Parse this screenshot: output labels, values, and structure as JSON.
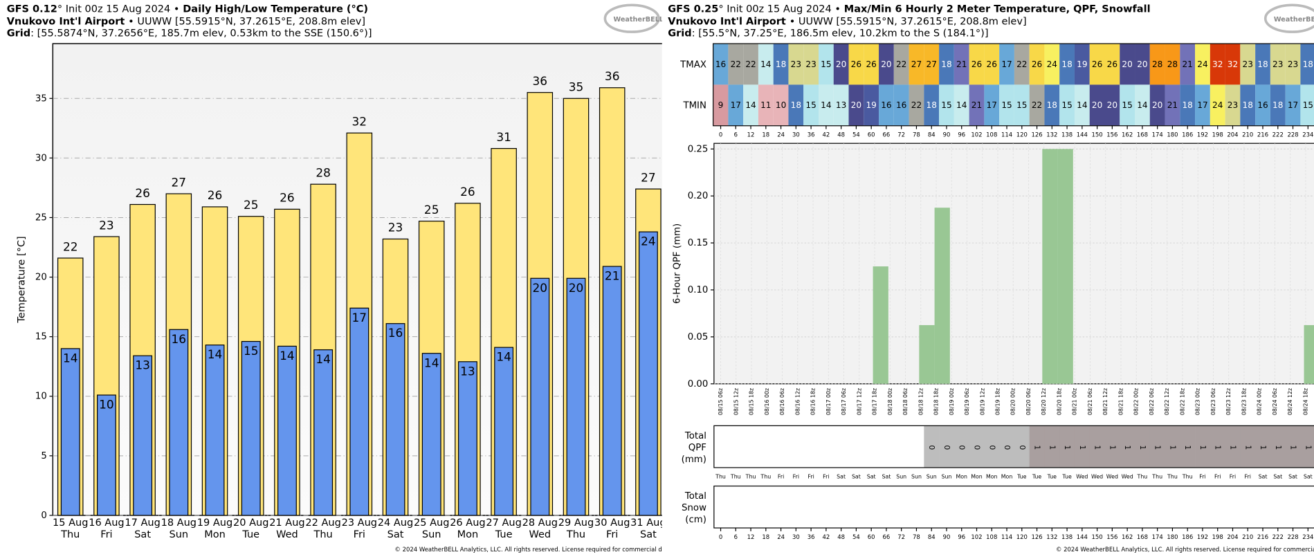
{
  "left_header": {
    "model": "GFS 0.12",
    "init": "° Init 00z 15 Aug 2024 •",
    "product": "Daily High/Low Temperature (°C)",
    "station": "Vnukovo Int'l Airport",
    "station_info": "• UUWW [55.5915°N, 37.2615°E, 208.8m elev]",
    "grid_label": "Grid",
    "grid_info": ": [55.5874°N, 37.2656°E, 185.7m elev, 0.53km to the SSE (150.6°)]",
    "logo": "WeatherBELL",
    "footer": "© 2024 WeatherBELL Analytics, LLC. All rights reserved. License required for commercial distribution"
  },
  "right_header": {
    "model": "GFS 0.25",
    "init": "° Init 00z 15 Aug 2024 •",
    "product": "Max/Min 6 Hourly 2 Meter Temperature, QPF, Snowfall",
    "station": "Vnukovo Int'l Airport",
    "station_info": "• UUWW [55.5915°N, 37.2615°E, 208.8m elev]",
    "grid_label": "Grid",
    "grid_info": ": [55.5°N, 37.25°E, 186.5m elev, 10.2km to the S (184.1°)]",
    "logo": "WeatherBELL",
    "footer": "© 2024 WeatherBELL Analytics, LLC. All rights reserved. License required for commercial distribution"
  },
  "chart_data": [
    {
      "type": "bar",
      "ylabel": "Temperature [°C]",
      "categories": [
        "15 Aug",
        "16 Aug",
        "17 Aug",
        "18 Aug",
        "19 Aug",
        "20 Aug",
        "21 Aug",
        "22 Aug",
        "23 Aug",
        "24 Aug",
        "25 Aug",
        "26 Aug",
        "27 Aug",
        "28 Aug",
        "29 Aug",
        "30 Aug",
        "31 Aug"
      ],
      "weekdays": [
        "Thu",
        "Fri",
        "Sat",
        "Sun",
        "Mon",
        "Tue",
        "Wed",
        "Thu",
        "Fri",
        "Sat",
        "Sun",
        "Mon",
        "Tue",
        "Wed",
        "Thu",
        "Fri",
        "Sat"
      ],
      "series": [
        {
          "color": "#ffe57a",
          "values": [
            21.6,
            23.4,
            26.1,
            27.0,
            25.9,
            25.1,
            25.7,
            27.8,
            32.1,
            23.2,
            24.7,
            26.2,
            30.8,
            35.5,
            35.0,
            35.9,
            27.4
          ],
          "value_labels": [
            "22",
            "23",
            "26",
            "27",
            "26",
            "25",
            "26",
            "28",
            "32",
            "23",
            "25",
            "26",
            "31",
            "36",
            "35",
            "36",
            "27"
          ]
        },
        {
          "color": "#6495ed",
          "values": [
            14.0,
            10.1,
            13.4,
            15.6,
            14.3,
            14.6,
            14.2,
            13.9,
            17.4,
            16.1,
            13.6,
            12.9,
            14.1,
            19.9,
            19.9,
            20.9,
            23.8
          ],
          "value_labels": [
            "14",
            "10",
            "13",
            "16",
            "14",
            "15",
            "14",
            "14",
            "17",
            "16",
            "14",
            "13",
            "14",
            "20",
            "20",
            "21",
            "24"
          ]
        }
      ],
      "ylim": [
        0,
        39.6
      ],
      "yticks": [
        0,
        5,
        10,
        15,
        20,
        25,
        30,
        35
      ],
      "grid": true
    },
    {
      "type": "bar",
      "ylabel": "6-Hour QPF (mm)",
      "color": "#99c794",
      "categories": [
        "08/15 06z",
        "08/15 12z",
        "08/15 18z",
        "08/16 00z",
        "08/16 06z",
        "08/16 12z",
        "08/16 18z",
        "08/17 00z",
        "08/17 06z",
        "08/17 12z",
        "08/17 18z",
        "08/18 00z",
        "08/18 06z",
        "08/18 12z",
        "08/18 18z",
        "08/19 00z",
        "08/19 06z",
        "08/19 12z",
        "08/19 18z",
        "08/20 00z",
        "08/20 06z",
        "08/20 12z",
        "08/20 18z",
        "08/21 00z",
        "08/21 06z",
        "08/21 12z",
        "08/21 18z",
        "08/22 00z",
        "08/22 06z",
        "08/22 12z",
        "08/22 18z",
        "08/23 00z",
        "08/23 06z",
        "08/23 12z",
        "08/23 18z",
        "08/24 00z",
        "08/24 06z",
        "08/24 12z",
        "08/24 18z"
      ],
      "values": [
        0,
        0,
        0,
        0,
        0,
        0,
        0,
        0,
        0,
        0,
        0.125,
        0,
        0,
        0.0625,
        0.1875,
        0,
        0,
        0,
        0,
        0,
        0,
        0.25,
        0.25,
        0,
        0,
        0,
        0,
        0,
        0,
        0,
        0,
        0,
        0,
        0,
        0,
        0,
        0,
        0,
        0.0625
      ],
      "ylim": [
        0,
        0.256
      ],
      "yticks": [
        {
          "value": 0,
          "label": "0.00"
        },
        {
          "value": 0.05,
          "label": "0.05"
        },
        {
          "value": 0.1,
          "label": "0.10"
        },
        {
          "value": 0.15,
          "label": "0.15"
        },
        {
          "value": 0.2,
          "label": "0.20"
        },
        {
          "value": 0.25,
          "label": "0.25"
        }
      ],
      "grid": true
    }
  ],
  "temp_table": {
    "hours": [
      0,
      6,
      12,
      18,
      24,
      30,
      36,
      42,
      48,
      54,
      60,
      66,
      72,
      78,
      84,
      90,
      96,
      102,
      108,
      114,
      120,
      126,
      132,
      138,
      144,
      150,
      156,
      162,
      168,
      174,
      180,
      186,
      192,
      198,
      204,
      210,
      216,
      222,
      228,
      234
    ],
    "rows": [
      {
        "name": "TMAX",
        "values": [
          16,
          22,
          22,
          14,
          18,
          23,
          23,
          15,
          20,
          26,
          26,
          20,
          22,
          27,
          27,
          18,
          21,
          26,
          26,
          17,
          22,
          26,
          24,
          18,
          19,
          26,
          26,
          20,
          20,
          28,
          28,
          21,
          24,
          32,
          32,
          23,
          18,
          23,
          23,
          18
        ]
      },
      {
        "name": "TMIN",
        "values": [
          9,
          17,
          14,
          11,
          10,
          18,
          15,
          14,
          13,
          20,
          19,
          16,
          16,
          22,
          18,
          15,
          14,
          21,
          17,
          15,
          15,
          22,
          18,
          15,
          14,
          20,
          20,
          15,
          14,
          20,
          21,
          18,
          17,
          24,
          23,
          18,
          16,
          18,
          17,
          15
        ]
      }
    ],
    "colorscale": [
      {
        "value": 9,
        "color": "#d89aa0"
      },
      {
        "value": 10,
        "color": "#e8b4b8"
      },
      {
        "value": 12,
        "color": "#d8eaec"
      },
      {
        "value": 13,
        "color": "#c8ecee"
      },
      {
        "value": 15,
        "color": "#b2e4ec"
      },
      {
        "value": 16,
        "color": "#68a8d8"
      },
      {
        "value": 18,
        "color": "#4a78b8"
      },
      {
        "value": 19,
        "color": "#4a5aa0"
      },
      {
        "value": 20,
        "color": "#4a4a8c"
      },
      {
        "value": 21,
        "color": "#7272b8"
      },
      {
        "value": 22,
        "color": "#a8a8a0"
      },
      {
        "value": 23,
        "color": "#d8d890"
      },
      {
        "value": 24,
        "color": "#f8f060"
      },
      {
        "value": 26,
        "color": "#f8d848"
      },
      {
        "value": 27,
        "color": "#f8b828"
      },
      {
        "value": 28,
        "color": "#f89818"
      },
      {
        "value": 32,
        "color": "#d83808"
      }
    ]
  },
  "total_qpf": {
    "label_lines": [
      "Total",
      "QPF",
      "(mm)"
    ],
    "weekdays": [
      "Thu",
      "Thu",
      "Thu",
      "Thu",
      "Fri",
      "Fri",
      "Fri",
      "Fri",
      "Sat",
      "Sat",
      "Sat",
      "Sat",
      "Sun",
      "Sun",
      "Sun",
      "Sun",
      "Mon",
      "Mon",
      "Mon",
      "Mon",
      "Tue",
      "Tue",
      "Tue",
      "Tue",
      "Wed",
      "Wed",
      "Wed",
      "Wed",
      "Thu",
      "Thu",
      "Thu",
      "Thu",
      "Fri",
      "Fri",
      "Fri",
      "Fri",
      "Sat",
      "Sat",
      "Sat",
      "Sat"
    ],
    "values": [
      null,
      null,
      null,
      null,
      null,
      null,
      null,
      null,
      null,
      null,
      null,
      null,
      null,
      null,
      0,
      0,
      0,
      0,
      0,
      0,
      0,
      1,
      1,
      1,
      1,
      1,
      1,
      1,
      1,
      1,
      1,
      1,
      1,
      1,
      1,
      1,
      1,
      1,
      1,
      1
    ],
    "colorscale": [
      {
        "value": 0,
        "color": "#bdbdbd"
      },
      {
        "value": 1,
        "color": "#a99f9f"
      }
    ]
  },
  "total_snow": {
    "label_lines": [
      "Total",
      "Snow",
      "(cm)"
    ]
  }
}
